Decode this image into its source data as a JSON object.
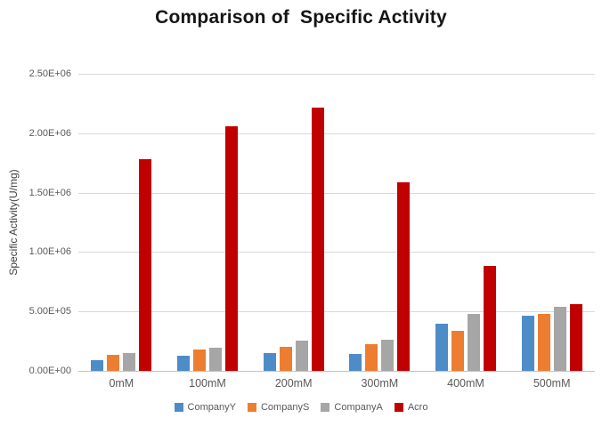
{
  "chart_data": {
    "type": "bar",
    "title": "Comparison of  Specific Activity",
    "xlabel": "",
    "ylabel": "Specific Activity(U/mg)",
    "categories": [
      "0mM",
      "100mM",
      "200mM",
      "300mM",
      "400mM",
      "500mM"
    ],
    "series": [
      {
        "name": "CompanyY",
        "color": "#4E8CC8",
        "values": [
          90000,
          130000,
          148000,
          140000,
          400000,
          465000
        ]
      },
      {
        "name": "CompanyS",
        "color": "#ED7D31",
        "values": [
          135000,
          180000,
          200000,
          222000,
          335000,
          478000
        ]
      },
      {
        "name": "CompanyA",
        "color": "#A6A6A6",
        "values": [
          150000,
          192000,
          252000,
          260000,
          479000,
          541000
        ]
      },
      {
        "name": "Acro",
        "color": "#C00000",
        "values": [
          1785000,
          2055000,
          2215000,
          1590000,
          883000,
          565000
        ]
      }
    ],
    "ylim": [
      0,
      2500000
    ],
    "ytick_step": 500000,
    "ytick_labels": [
      "0.00E+00",
      "5.00E+05",
      "1.00E+06",
      "1.50E+06",
      "2.00E+06",
      "2.50E+06"
    ],
    "grid": "horizontal",
    "legend_position": "bottom"
  },
  "colors": {
    "background": "#FFFFFF",
    "gridline": "#D9D9D9",
    "axis_line": "#C3C3C3",
    "tick_text": "#595959",
    "title_text": "#151515",
    "y_axis_title_text": "#3F3F3F"
  }
}
